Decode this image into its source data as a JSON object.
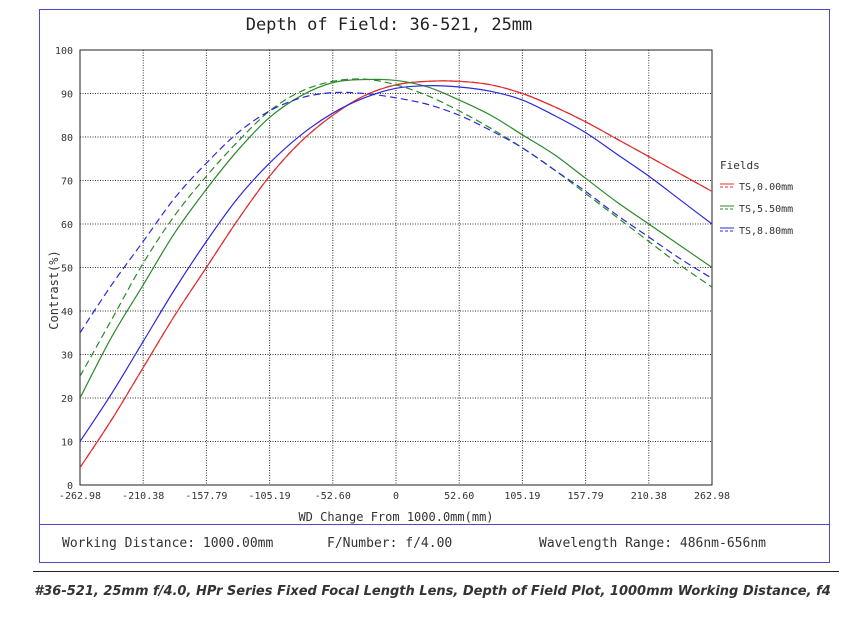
{
  "chart_data": {
    "type": "line",
    "title": "Depth of Field: 36-521, 25mm",
    "xlabel": "WD Change From 1000.0mm(mm)",
    "ylabel": "Contrast(%)",
    "xlim": [
      -262.98,
      262.98
    ],
    "ylim": [
      0,
      100
    ],
    "x_ticks": [
      "-262.98",
      "-210.38",
      "-157.79",
      "-105.19",
      "-52.60",
      "0",
      "52.60",
      "105.19",
      "157.79",
      "210.38",
      "262.98"
    ],
    "y_ticks": [
      "0",
      "10",
      "20",
      "30",
      "40",
      "50",
      "60",
      "70",
      "80",
      "90",
      "100"
    ],
    "grid": true,
    "legend_title": "Fields",
    "legend_position": "right",
    "series": [
      {
        "name": "TS,0.00mm",
        "color": "#e03030",
        "style": "solid",
        "x": [
          -262.98,
          -236.68,
          -210.38,
          -184.09,
          -157.79,
          -131.49,
          -105.19,
          -78.89,
          -52.6,
          -26.3,
          0,
          26.3,
          52.6,
          78.89,
          105.19,
          131.49,
          157.79,
          184.09,
          210.38,
          236.68,
          262.98
        ],
        "y": [
          4,
          15,
          27,
          39,
          50,
          61,
          71,
          79,
          85,
          89.5,
          92,
          92.8,
          92.8,
          92,
          90,
          87,
          83.5,
          79.5,
          75.5,
          71.5,
          67.5
        ]
      },
      {
        "name": "",
        "color": "#e03030",
        "style": "dashed",
        "x": [
          -262.98,
          -236.68,
          -210.38,
          -184.09,
          -157.79,
          -131.49,
          -105.19,
          -78.89,
          -52.6,
          -26.3,
          0,
          26.3,
          52.6,
          78.89,
          105.19,
          131.49,
          157.79,
          184.09,
          210.38,
          236.68,
          262.98
        ],
        "y": [
          4,
          15,
          27,
          39,
          50,
          61,
          71,
          79,
          85,
          89.5,
          92,
          92.8,
          92.8,
          92,
          90,
          87,
          83.5,
          79.5,
          75.5,
          71.5,
          67.5
        ]
      },
      {
        "name": "TS,5.50mm",
        "color": "#2a8a2a",
        "style": "solid",
        "x": [
          -262.98,
          -236.68,
          -210.38,
          -184.09,
          -157.79,
          -131.49,
          -105.19,
          -78.89,
          -52.6,
          -26.3,
          0,
          26.3,
          52.6,
          78.89,
          105.19,
          131.49,
          157.79,
          184.09,
          210.38,
          236.68,
          262.98
        ],
        "y": [
          20,
          34,
          46,
          58,
          68,
          77,
          84.5,
          89.5,
          92.5,
          93.2,
          93,
          91.5,
          88.5,
          85,
          80.5,
          76,
          70.5,
          65,
          60,
          55,
          50
        ]
      },
      {
        "name": "",
        "color": "#2a8a2a",
        "style": "dashed",
        "x": [
          -262.98,
          -236.68,
          -210.38,
          -184.09,
          -157.79,
          -131.49,
          -105.19,
          -78.89,
          -52.6,
          -26.3,
          0,
          26.3,
          52.6,
          78.89,
          105.19,
          131.49,
          157.79,
          184.09,
          210.38,
          236.68,
          262.98
        ],
        "y": [
          25,
          38,
          51,
          62,
          71,
          79,
          86,
          90.5,
          92.8,
          93.3,
          92,
          89.5,
          86,
          82,
          77.5,
          72.5,
          67,
          61.5,
          56,
          50.5,
          45.5
        ]
      },
      {
        "name": "TS,8.80mm",
        "color": "#2a2adc",
        "style": "solid",
        "x": [
          -262.98,
          -236.68,
          -210.38,
          -184.09,
          -157.79,
          -131.49,
          -105.19,
          -78.89,
          -52.6,
          -26.3,
          0,
          26.3,
          52.6,
          78.89,
          105.19,
          131.49,
          157.79,
          184.09,
          210.38,
          236.68,
          262.98
        ],
        "y": [
          10,
          21,
          33,
          45,
          56,
          66,
          74,
          80.5,
          85.5,
          89,
          91.2,
          91.8,
          91.5,
          90.5,
          88.5,
          85,
          81,
          76,
          71,
          65.5,
          60
        ]
      },
      {
        "name": "",
        "color": "#2a2adc",
        "style": "dashed",
        "x": [
          -262.98,
          -236.68,
          -210.38,
          -184.09,
          -157.79,
          -131.49,
          -105.19,
          -78.89,
          -52.6,
          -26.3,
          0,
          26.3,
          52.6,
          78.89,
          105.19,
          131.49,
          157.79,
          184.09,
          210.38,
          236.68,
          262.98
        ],
        "y": [
          35,
          46,
          56,
          66,
          74,
          81,
          86,
          89,
          90.2,
          90,
          89,
          87.5,
          85,
          81.5,
          77.5,
          72.5,
          67.5,
          62,
          57,
          52,
          47.5
        ]
      }
    ]
  },
  "footer": {
    "working_distance": "Working Distance: 1000.00mm",
    "f_number": "F/Number: f/4.00",
    "wavelength": "Wavelength Range: 486nm-656nm"
  },
  "caption": "#36-521, 25mm f/4.0, HPr Series Fixed Focal Length Lens, Depth of Field Plot, 1000mm Working Distance, f4"
}
